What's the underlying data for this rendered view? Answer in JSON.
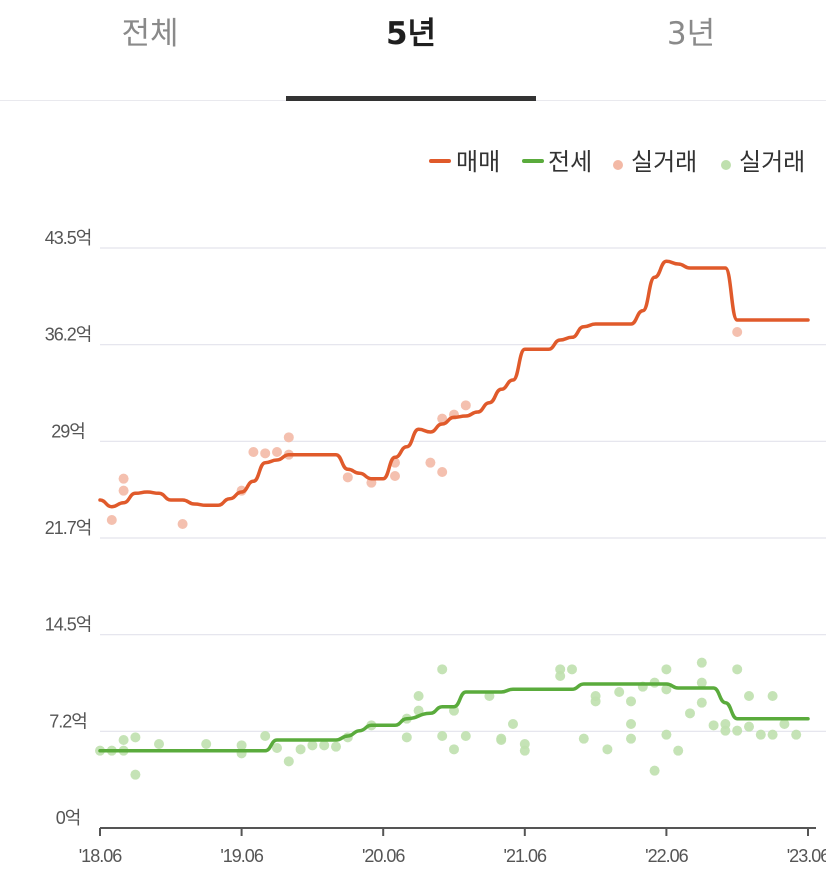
{
  "tabs": [
    {
      "label": "전체",
      "active": false
    },
    {
      "label": "5년",
      "active": true
    },
    {
      "label": "3년",
      "active": false
    }
  ],
  "colors": {
    "sale": "#e05a2b",
    "jeonse": "#5aab3c",
    "sale_dot": "#f3b9a6",
    "jeonse_dot": "#bfe0ae",
    "grid": "#e3e3ec",
    "axis": "#555555"
  },
  "chart_data": {
    "type": "line",
    "legend": [
      "매매",
      "전세",
      "실거래",
      "실거래"
    ],
    "legend_position": "top-right",
    "x_range": [
      "2018-06",
      "2023-06"
    ],
    "x_ticks": [
      "'18.06",
      "'19.06",
      "'20.06",
      "'21.06",
      "'22.06",
      "'23.06"
    ],
    "y_unit": "억",
    "y_range": [
      0,
      43.5
    ],
    "y_ticks": [
      "0억",
      "7.2억",
      "14.5억",
      "21.7억",
      "29억",
      "36.2억",
      "43.5억"
    ],
    "y_tick_values": [
      0,
      7.25,
      14.5,
      21.75,
      29,
      36.25,
      43.5
    ],
    "grid": true,
    "series": [
      {
        "name": "매매",
        "type": "line",
        "points": [
          [
            "2018-06",
            24.6
          ],
          [
            "2018-07",
            24.1
          ],
          [
            "2018-08",
            24.4
          ],
          [
            "2018-09",
            25.1
          ],
          [
            "2018-10",
            25.2
          ],
          [
            "2018-11",
            25.1
          ],
          [
            "2018-12",
            24.6
          ],
          [
            "2019-01",
            24.6
          ],
          [
            "2019-02",
            24.3
          ],
          [
            "2019-03",
            24.2
          ],
          [
            "2019-04",
            24.2
          ],
          [
            "2019-05",
            24.7
          ],
          [
            "2019-06",
            25.2
          ],
          [
            "2019-07",
            26.0
          ],
          [
            "2019-08",
            27.4
          ],
          [
            "2019-09",
            27.6
          ],
          [
            "2019-10",
            28.0
          ],
          [
            "2019-11",
            28.0
          ],
          [
            "2019-12",
            28.0
          ],
          [
            "2020-01",
            28.0
          ],
          [
            "2020-02",
            28.0
          ],
          [
            "2020-03",
            26.9
          ],
          [
            "2020-04",
            26.6
          ],
          [
            "2020-05",
            26.2
          ],
          [
            "2020-06",
            26.2
          ],
          [
            "2020-07",
            27.8
          ],
          [
            "2020-08",
            28.6
          ],
          [
            "2020-09",
            29.9
          ],
          [
            "2020-10",
            29.7
          ],
          [
            "2020-11",
            30.3
          ],
          [
            "2020-12",
            30.8
          ],
          [
            "2021-01",
            30.9
          ],
          [
            "2021-02",
            31.2
          ],
          [
            "2021-03",
            31.9
          ],
          [
            "2021-04",
            32.9
          ],
          [
            "2021-05",
            33.6
          ],
          [
            "2021-06",
            35.9
          ],
          [
            "2021-07",
            35.9
          ],
          [
            "2021-08",
            35.9
          ],
          [
            "2021-09",
            36.6
          ],
          [
            "2021-10",
            36.8
          ],
          [
            "2021-11",
            37.6
          ],
          [
            "2021-12",
            37.8
          ],
          [
            "2022-01",
            37.8
          ],
          [
            "2022-02",
            37.8
          ],
          [
            "2022-03",
            37.8
          ],
          [
            "2022-04",
            38.8
          ],
          [
            "2022-05",
            41.3
          ],
          [
            "2022-06",
            42.5
          ],
          [
            "2022-07",
            42.3
          ],
          [
            "2022-08",
            42.0
          ],
          [
            "2022-09",
            42.0
          ],
          [
            "2022-10",
            42.0
          ],
          [
            "2022-11",
            42.0
          ],
          [
            "2022-12",
            38.1
          ],
          [
            "2023-01",
            38.1
          ],
          [
            "2023-02",
            38.1
          ],
          [
            "2023-03",
            38.1
          ],
          [
            "2023-04",
            38.1
          ],
          [
            "2023-05",
            38.1
          ],
          [
            "2023-06",
            38.1
          ]
        ]
      },
      {
        "name": "전세",
        "type": "line",
        "points": [
          [
            "2018-06",
            5.8
          ],
          [
            "2018-09",
            5.8
          ],
          [
            "2018-12",
            5.8
          ],
          [
            "2019-03",
            5.8
          ],
          [
            "2019-06",
            5.8
          ],
          [
            "2019-08",
            5.8
          ],
          [
            "2019-09",
            6.6
          ],
          [
            "2019-11",
            6.6
          ],
          [
            "2020-01",
            6.6
          ],
          [
            "2020-02",
            6.6
          ],
          [
            "2020-03",
            6.9
          ],
          [
            "2020-04",
            7.3
          ],
          [
            "2020-05",
            7.7
          ],
          [
            "2020-07",
            7.7
          ],
          [
            "2020-08",
            8.2
          ],
          [
            "2020-10",
            8.6
          ],
          [
            "2020-11",
            9.1
          ],
          [
            "2020-12",
            9.1
          ],
          [
            "2021-01",
            10.2
          ],
          [
            "2021-04",
            10.2
          ],
          [
            "2021-05",
            10.4
          ],
          [
            "2021-10",
            10.4
          ],
          [
            "2021-11",
            10.8
          ],
          [
            "2022-06",
            10.8
          ],
          [
            "2022-07",
            10.5
          ],
          [
            "2022-10",
            10.5
          ],
          [
            "2022-11",
            9.4
          ],
          [
            "2022-12",
            8.2
          ],
          [
            "2023-06",
            8.2
          ]
        ]
      },
      {
        "name": "실거래",
        "type": "scatter",
        "points": [
          [
            "2018-07",
            23.1
          ],
          [
            "2018-08",
            25.3
          ],
          [
            "2018-08",
            26.2
          ],
          [
            "2019-01",
            22.8
          ],
          [
            "2019-06",
            25.3
          ],
          [
            "2019-07",
            28.2
          ],
          [
            "2019-08",
            28.1
          ],
          [
            "2019-09",
            28.2
          ],
          [
            "2019-10",
            28.0
          ],
          [
            "2019-10",
            29.3
          ],
          [
            "2020-03",
            26.3
          ],
          [
            "2020-05",
            25.9
          ],
          [
            "2020-07",
            26.4
          ],
          [
            "2020-07",
            27.4
          ],
          [
            "2020-10",
            27.4
          ],
          [
            "2020-11",
            26.7
          ],
          [
            "2020-11",
            30.7
          ],
          [
            "2020-12",
            31.0
          ],
          [
            "2021-01",
            31.7
          ],
          [
            "2022-12",
            37.2
          ]
        ]
      },
      {
        "name": "실거래",
        "type": "scatter",
        "points": [
          [
            "2018-06",
            5.8
          ],
          [
            "2018-07",
            5.8
          ],
          [
            "2018-08",
            6.6
          ],
          [
            "2018-08",
            5.8
          ],
          [
            "2018-09",
            6.8
          ],
          [
            "2018-09",
            4.0
          ],
          [
            "2018-11",
            6.3
          ],
          [
            "2019-03",
            6.3
          ],
          [
            "2019-06",
            6.2
          ],
          [
            "2019-06",
            5.6
          ],
          [
            "2019-08",
            6.9
          ],
          [
            "2019-09",
            6.0
          ],
          [
            "2019-10",
            5.0
          ],
          [
            "2019-11",
            5.9
          ],
          [
            "2019-12",
            6.2
          ],
          [
            "2020-01",
            6.2
          ],
          [
            "2020-02",
            6.1
          ],
          [
            "2020-03",
            6.8
          ],
          [
            "2020-05",
            7.7
          ],
          [
            "2020-08",
            8.2
          ],
          [
            "2020-08",
            6.8
          ],
          [
            "2020-09",
            8.8
          ],
          [
            "2020-09",
            9.9
          ],
          [
            "2020-11",
            11.9
          ],
          [
            "2020-11",
            6.9
          ],
          [
            "2020-12",
            8.8
          ],
          [
            "2020-12",
            5.9
          ],
          [
            "2021-01",
            6.9
          ],
          [
            "2021-03",
            9.9
          ],
          [
            "2021-04",
            6.6
          ],
          [
            "2021-04",
            6.7
          ],
          [
            "2021-05",
            7.8
          ],
          [
            "2021-06",
            5.8
          ],
          [
            "2021-06",
            6.3
          ],
          [
            "2021-09",
            11.9
          ],
          [
            "2021-09",
            11.4
          ],
          [
            "2021-10",
            11.9
          ],
          [
            "2021-11",
            6.7
          ],
          [
            "2021-12",
            9.5
          ],
          [
            "2021-12",
            9.9
          ],
          [
            "2022-01",
            5.9
          ],
          [
            "2022-02",
            10.2
          ],
          [
            "2022-03",
            7.8
          ],
          [
            "2022-03",
            6.7
          ],
          [
            "2022-03",
            9.5
          ],
          [
            "2022-04",
            10.6
          ],
          [
            "2022-05",
            4.3
          ],
          [
            "2022-05",
            10.9
          ],
          [
            "2022-06",
            11.9
          ],
          [
            "2022-06",
            7.0
          ],
          [
            "2022-07",
            5.8
          ],
          [
            "2022-08",
            8.6
          ],
          [
            "2022-09",
            10.9
          ],
          [
            "2022-09",
            9.4
          ],
          [
            "2022-10",
            7.7
          ],
          [
            "2022-11",
            7.3
          ],
          [
            "2022-12",
            7.3
          ],
          [
            "2022-12",
            11.9
          ],
          [
            "2023-01",
            7.6
          ],
          [
            "2023-01",
            9.9
          ],
          [
            "2023-02",
            7.0
          ],
          [
            "2023-03",
            9.9
          ],
          [
            "2023-03",
            7.0
          ],
          [
            "2023-04",
            7.8
          ],
          [
            "2023-05",
            7.0
          ],
          [
            "2022-09",
            12.4
          ],
          [
            "2022-06",
            10.4
          ],
          [
            "2022-11",
            7.8
          ]
        ]
      }
    ]
  }
}
